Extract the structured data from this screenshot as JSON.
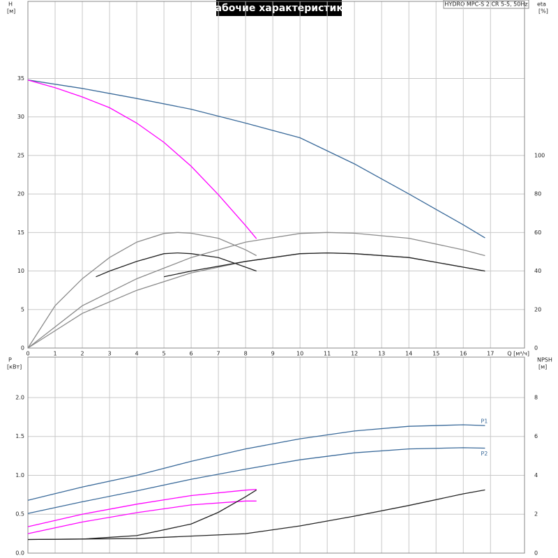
{
  "chart_data": [
    {
      "type": "line",
      "title": "Рабочие характеристики",
      "subtitle": "HYDRO MPC-S 2 CR 5-5, 50Hz",
      "ylabel": "H",
      "yunit": "[м]",
      "y2label": "eta",
      "y2unit": "[%]",
      "xlabel": "Q [м³/ч]",
      "xlim": [
        0,
        18.25
      ],
      "xticks": [
        0,
        1,
        2,
        3,
        4,
        5,
        6,
        7,
        8,
        9,
        10,
        11,
        12,
        13,
        14,
        15,
        16,
        17
      ],
      "ylim": [
        0,
        45
      ],
      "yticks": [
        0,
        5,
        10,
        15,
        20,
        25,
        30,
        35
      ],
      "y2lim": [
        0,
        180
      ],
      "y2ticks": [
        0,
        20,
        40,
        60,
        80,
        100
      ],
      "grid": true,
      "series": [
        {
          "color": "#3a6a9a",
          "x": [
            0,
            2,
            4,
            6,
            8,
            10,
            12,
            14,
            16,
            16.8
          ],
          "values": [
            34.8,
            33.7,
            32.4,
            31,
            29.2,
            27.3,
            23.9,
            20,
            16,
            14.3
          ]
        },
        {
          "color": "#ff00ff",
          "x": [
            0,
            1,
            2,
            3,
            4,
            5,
            6,
            7,
            8,
            8.4
          ],
          "values": [
            34.8,
            33.8,
            32.6,
            31.2,
            29.2,
            26.7,
            23.6,
            19.9,
            15.9,
            14.2
          ]
        },
        {
          "color": "#8a8a8a",
          "axis": "y2",
          "x": [
            0,
            1,
            2,
            3,
            4,
            5,
            5.5,
            6,
            7,
            8,
            8.4
          ],
          "values": [
            0,
            22,
            36,
            47,
            55,
            59.5,
            60,
            59.6,
            57,
            51,
            48
          ]
        },
        {
          "color": "#222222",
          "axis": "y2",
          "x": [
            2.5,
            3,
            4,
            5,
            5.5,
            6,
            7,
            8,
            8.4
          ],
          "values": [
            37,
            40,
            45,
            49,
            49.4,
            49,
            47,
            42,
            40
          ]
        },
        {
          "color": "#8a8a8a",
          "axis": "y2",
          "x": [
            0,
            2,
            4,
            6,
            8,
            10,
            11,
            12,
            14,
            16,
            16.8
          ],
          "values": [
            0,
            22,
            36,
            47,
            55,
            59.5,
            60,
            59.6,
            57,
            51,
            48
          ]
        },
        {
          "color": "#8a8a8a",
          "axis": "y2",
          "x": [
            0,
            2,
            4,
            6,
            8,
            10,
            11,
            12,
            14,
            16,
            16.8
          ],
          "values": [
            0,
            18,
            30,
            39,
            45,
            49,
            49.4,
            49,
            47,
            42,
            40
          ]
        },
        {
          "color": "#222222",
          "axis": "y2",
          "x": [
            5,
            6,
            8,
            10,
            11,
            12,
            14,
            16,
            16.8
          ],
          "values": [
            37,
            40,
            45,
            49,
            49.4,
            49,
            47,
            42,
            40
          ]
        }
      ]
    },
    {
      "type": "line",
      "ylabel": "P",
      "yunit": "[кВт]",
      "y2label": "NPSH",
      "y2unit": "[м]",
      "xlim": [
        0,
        18.25
      ],
      "xticks": [
        0,
        1,
        2,
        3,
        4,
        5,
        6,
        7,
        8,
        9,
        10,
        11,
        12,
        13,
        14,
        15,
        16,
        17
      ],
      "ylim": [
        0,
        2.52
      ],
      "yticks": [
        {
          "value": 0,
          "label": "0.0"
        },
        0.5,
        {
          "value": 1,
          "label": "1.0"
        },
        1.5,
        {
          "value": 2,
          "label": "2.0"
        }
      ],
      "y2lim": [
        0,
        10.08
      ],
      "y2ticks": [
        0,
        2,
        4,
        6,
        8
      ],
      "grid": true,
      "series": [
        {
          "name": "P1",
          "color": "#3a6a9a",
          "x": [
            0,
            2,
            4,
            6,
            8,
            10,
            12,
            14,
            16,
            16.8
          ],
          "values": [
            0.68,
            0.85,
            1.0,
            1.18,
            1.34,
            1.47,
            1.57,
            1.63,
            1.65,
            1.64
          ]
        },
        {
          "name": "P2",
          "color": "#3a6a9a",
          "x": [
            0,
            2,
            4,
            6,
            8,
            10,
            12,
            14,
            16,
            16.8
          ],
          "values": [
            0.51,
            0.66,
            0.8,
            0.95,
            1.08,
            1.2,
            1.29,
            1.34,
            1.355,
            1.35
          ]
        },
        {
          "color": "#ff00ff",
          "x": [
            0,
            2,
            4,
            6,
            8,
            8.4
          ],
          "values": [
            0.34,
            0.5,
            0.63,
            0.74,
            0.81,
            0.82
          ]
        },
        {
          "color": "#ff00ff",
          "x": [
            0,
            2,
            4,
            6,
            8,
            8.4
          ],
          "values": [
            0.25,
            0.4,
            0.52,
            0.62,
            0.67,
            0.67
          ]
        },
        {
          "color": "#222222",
          "axis": "y2",
          "x": [
            0,
            2,
            4,
            6,
            7,
            8,
            8.4
          ],
          "values": [
            0.7,
            0.72,
            0.9,
            1.5,
            2.1,
            2.9,
            3.25
          ]
        },
        {
          "color": "#222222",
          "axis": "y2",
          "x": [
            0,
            4,
            8,
            10,
            12,
            14,
            16,
            16.8
          ],
          "values": [
            0.7,
            0.75,
            1.0,
            1.4,
            1.9,
            2.45,
            3.05,
            3.25
          ]
        }
      ]
    }
  ]
}
